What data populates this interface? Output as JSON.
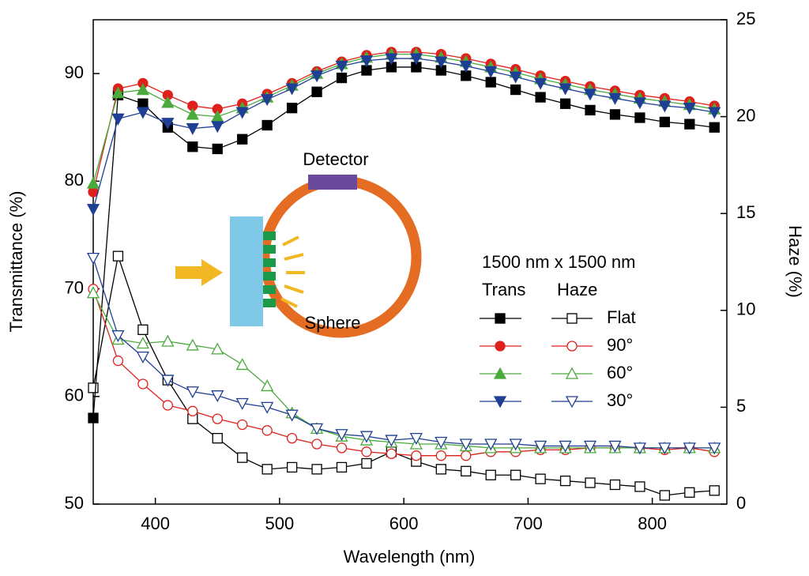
{
  "chart_data": {
    "type": "line",
    "x_label": "Wavelength (nm)",
    "y_label": "Transmittance (%)",
    "y2_label": "Haze (%)",
    "x": [
      350,
      370,
      390,
      410,
      430,
      450,
      470,
      490,
      510,
      530,
      550,
      570,
      590,
      610,
      630,
      650,
      670,
      690,
      710,
      730,
      750,
      770,
      790,
      810,
      830,
      850
    ],
    "xlim": [
      350,
      860
    ],
    "xticks": [
      400,
      500,
      600,
      700,
      800
    ],
    "ylim": [
      50,
      95
    ],
    "yticks": [
      50,
      60,
      70,
      80,
      90
    ],
    "y2lim": [
      0,
      25
    ],
    "y2ticks": [
      0,
      5,
      10,
      15,
      20,
      25
    ],
    "legend_title": "1500 nm x 1500 nm",
    "legend_headers": [
      "Trans",
      "Haze"
    ],
    "annotations": [
      "Detector",
      "Sphere"
    ],
    "series": [
      {
        "name": "Flat",
        "color": "#000000",
        "marker": "square",
        "trans": [
          58,
          88,
          87.2,
          85,
          83.2,
          83,
          83.9,
          85.2,
          86.8,
          88.3,
          89.6,
          90.3,
          90.6,
          90.6,
          90.3,
          89.8,
          89.2,
          88.5,
          87.8,
          87.2,
          86.6,
          86.2,
          85.9,
          85.5,
          85.3,
          85
        ],
        "haze": [
          6.0,
          12.8,
          9.0,
          6.4,
          4.4,
          3.4,
          2.4,
          1.8,
          1.9,
          1.8,
          1.9,
          2.1,
          2.7,
          2.2,
          1.8,
          1.7,
          1.5,
          1.5,
          1.3,
          1.2,
          1.1,
          1.0,
          0.9,
          0.45,
          0.6,
          0.7
        ]
      },
      {
        "name": "90°",
        "color": "#e0201b",
        "marker": "circle",
        "trans": [
          79,
          88.6,
          89.1,
          88,
          87,
          86.7,
          87.2,
          88.1,
          89.1,
          90.2,
          91.1,
          91.7,
          92,
          92,
          91.8,
          91.4,
          90.9,
          90.4,
          89.8,
          89.3,
          88.8,
          88.4,
          88,
          87.7,
          87.4,
          87
        ],
        "haze": [
          11.1,
          7.4,
          6.2,
          5.1,
          4.8,
          4.4,
          4.1,
          3.8,
          3.4,
          3.1,
          2.9,
          2.7,
          2.6,
          2.5,
          2.5,
          2.5,
          2.7,
          2.7,
          2.8,
          2.8,
          2.9,
          2.9,
          2.9,
          2.8,
          2.9,
          2.7
        ]
      },
      {
        "name": "60°",
        "color": "#4aaa3c",
        "marker": "triangle-up",
        "trans": [
          79.8,
          88.2,
          88.5,
          87.3,
          86.2,
          86,
          86.8,
          87.8,
          88.9,
          90,
          90.9,
          91.5,
          91.8,
          91.8,
          91.5,
          91.1,
          90.6,
          90.1,
          89.5,
          89,
          88.5,
          88.1,
          87.7,
          87.4,
          87.1,
          86.7
        ],
        "haze": [
          10.9,
          8.5,
          8.3,
          8.4,
          8.2,
          8.0,
          7.2,
          6.1,
          4.7,
          3.9,
          3.5,
          3.3,
          3.2,
          3.1,
          3.1,
          3.0,
          2.9,
          2.9,
          2.9,
          2.9,
          2.9,
          2.9,
          2.9,
          2.9,
          2.9,
          2.9
        ]
      },
      {
        "name": "30°",
        "color": "#1f3f94",
        "marker": "triangle-down",
        "trans": [
          77.4,
          85.8,
          86.4,
          85.4,
          84.9,
          85.1,
          86.4,
          87.6,
          88.6,
          89.8,
          90.7,
          91.2,
          91.4,
          91.4,
          91.1,
          90.7,
          90.2,
          89.7,
          89.1,
          88.6,
          88.1,
          87.7,
          87.3,
          87,
          86.8,
          86.4
        ],
        "haze": [
          12.7,
          8.7,
          7.6,
          6.4,
          5.8,
          5.6,
          5.2,
          5.0,
          4.6,
          3.9,
          3.6,
          3.5,
          3.3,
          3.4,
          3.2,
          3.1,
          3.1,
          3.1,
          3.0,
          3.0,
          3.0,
          3.0,
          2.9,
          2.9,
          2.9,
          2.9
        ]
      }
    ]
  }
}
